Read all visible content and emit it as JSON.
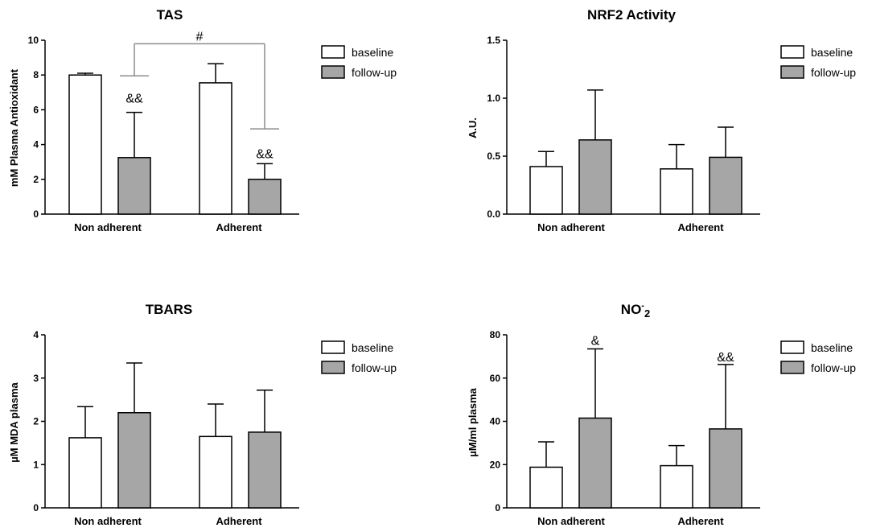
{
  "chart_data": [
    {
      "id": "tas",
      "type": "bar",
      "title": "TAS",
      "title_sup": "",
      "title_tail": "",
      "ylabel": "mM Plasma Antioxidant",
      "ylim": [
        0,
        10
      ],
      "yticks": [
        "0",
        "2",
        "4",
        "6",
        "8",
        "10"
      ],
      "ytick_values": [
        0,
        2,
        4,
        6,
        8,
        10
      ],
      "categories": [
        "Non adherent",
        "Adherent"
      ],
      "series": [
        {
          "name": "baseline",
          "color": "#ffffff",
          "values": [
            8.0,
            7.55
          ],
          "errors": [
            0.1,
            1.1
          ]
        },
        {
          "name": "follow-up",
          "color": "#a6a6a6",
          "values": [
            3.25,
            2.0
          ],
          "errors": [
            2.6,
            0.9
          ]
        }
      ],
      "legend": {
        "position": "top-right",
        "entries": [
          "baseline",
          "follow-up"
        ]
      },
      "annotations": [
        {
          "text": "&&",
          "category": 0,
          "series": 1,
          "y": 6.7
        },
        {
          "text": "&&",
          "category": 1,
          "series": 1,
          "y": 3.5
        }
      ],
      "brackets": [
        {
          "text": "#",
          "from_category": 0,
          "to_category": 1,
          "y_top": 9.8,
          "left_arm_y": 7.95,
          "right_arm_y": 4.9
        }
      ]
    },
    {
      "id": "nrf2",
      "type": "bar",
      "title": "NRF2 Activity",
      "title_sup": "",
      "title_tail": "",
      "ylabel": "A.U.",
      "ylim": [
        0,
        1.5
      ],
      "yticks": [
        "0.0",
        "0.5",
        "1.0",
        "1.5"
      ],
      "ytick_values": [
        0,
        0.5,
        1.0,
        1.5
      ],
      "categories": [
        "Non adherent",
        "Adherent"
      ],
      "series": [
        {
          "name": "baseline",
          "color": "#ffffff",
          "values": [
            0.41,
            0.39
          ],
          "errors": [
            0.13,
            0.21
          ]
        },
        {
          "name": "follow-up",
          "color": "#a6a6a6",
          "values": [
            0.64,
            0.49
          ],
          "errors": [
            0.43,
            0.26
          ]
        }
      ],
      "legend": {
        "position": "top-right",
        "entries": [
          "baseline",
          "follow-up"
        ]
      },
      "annotations": [],
      "brackets": []
    },
    {
      "id": "tbars",
      "type": "bar",
      "title": "TBARS",
      "title_sup": "",
      "title_tail": "",
      "ylabel": "µM MDA plasma",
      "ylim": [
        0,
        4
      ],
      "yticks": [
        "0",
        "1",
        "2",
        "3",
        "4"
      ],
      "ytick_values": [
        0,
        1,
        2,
        3,
        4
      ],
      "categories": [
        "Non adherent",
        "Adherent"
      ],
      "series": [
        {
          "name": "baseline",
          "color": "#ffffff",
          "values": [
            1.62,
            1.65
          ],
          "errors": [
            0.72,
            0.75
          ]
        },
        {
          "name": "follow-up",
          "color": "#a6a6a6",
          "values": [
            2.2,
            1.75
          ],
          "errors": [
            1.15,
            0.97
          ]
        }
      ],
      "legend": {
        "position": "top-right",
        "entries": [
          "baseline",
          "follow-up"
        ]
      },
      "annotations": [],
      "brackets": []
    },
    {
      "id": "no2",
      "type": "bar",
      "title": "NO",
      "title_sup": "-",
      "title_tail": "2",
      "ylabel": "µM/ml plasma",
      "ylim": [
        0,
        80
      ],
      "yticks": [
        "0",
        "20",
        "40",
        "60",
        "80"
      ],
      "ytick_values": [
        0,
        20,
        40,
        60,
        80
      ],
      "categories": [
        "Non adherent",
        "Adherent"
      ],
      "series": [
        {
          "name": "baseline",
          "color": "#ffffff",
          "values": [
            18.8,
            19.5
          ],
          "errors": [
            11.7,
            9.3
          ]
        },
        {
          "name": "follow-up",
          "color": "#a6a6a6",
          "values": [
            41.5,
            36.5
          ],
          "errors": [
            32.0,
            29.8
          ]
        }
      ],
      "legend": {
        "position": "top-right",
        "entries": [
          "baseline",
          "follow-up"
        ]
      },
      "annotations": [
        {
          "text": "&",
          "category": 0,
          "series": 1,
          "y": 77.5
        },
        {
          "text": "&&",
          "category": 1,
          "series": 1,
          "y": 70.0
        }
      ],
      "brackets": []
    }
  ]
}
